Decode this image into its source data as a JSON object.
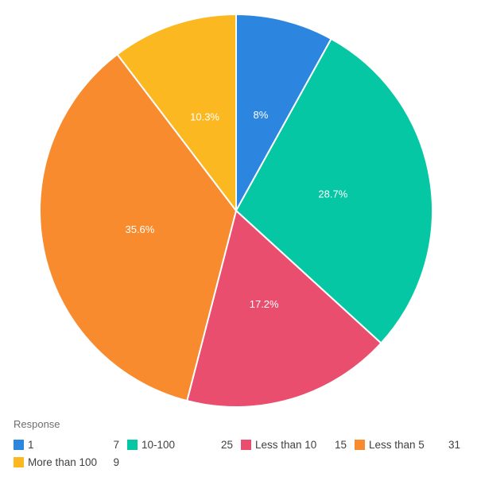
{
  "chart_data": {
    "type": "pie",
    "legend_title": "Response",
    "categories": [
      "1",
      "10-100",
      "Less than 10",
      "Less than 5",
      "More than 100"
    ],
    "values": [
      7,
      25,
      15,
      31,
      9
    ],
    "slice_labels": [
      "8%",
      "28.7%",
      "17.2%",
      "35.6%",
      "10.3%"
    ],
    "colors": [
      "#2c86e0",
      "#05c7a4",
      "#e94e6e",
      "#f78b2d",
      "#fcb821"
    ],
    "start_angle_deg": 0,
    "direction": "clockwise",
    "label_radius_ratio": 0.5,
    "label_color": "#ffffff",
    "slice_border_color": "#ffffff",
    "background": "#ffffff",
    "legend_position": "bottom-left",
    "legend_title_color": "#6e6e6e",
    "legend_text_color": "#404040"
  }
}
